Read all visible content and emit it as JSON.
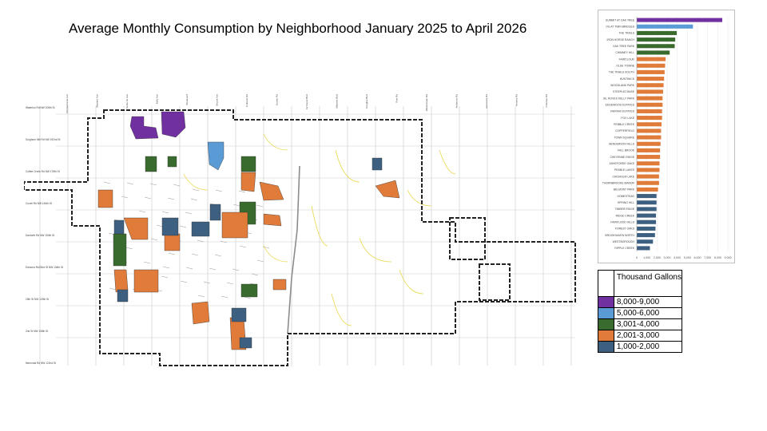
{
  "title": "Average Monthly Consumption by Neighborhood January 2025 to April 2026",
  "map": {
    "street_labels_top": [
      "Pennsylvania Ave",
      "Western Ave",
      "Santa Fe Ave",
      "Kelly Ave",
      "Boulevard",
      "Bryant Ave",
      "Coltrane Rd",
      "Sooner Rd",
      "Air Depot Blvd",
      "Midwest Blvd",
      "Douglas Blvd",
      "Post Rd",
      "Westminster Rd",
      "Anderson Rd",
      "Hiwassee Rd",
      "Henney Rd",
      "Choctaw Rd"
    ],
    "street_labels_left": [
      "Waterloo Rd NW 206th St",
      "Sorghum Mill Rd NW 192nd St",
      "Coffee Creek Rd NW 178th St",
      "Covell Rd NW 164th St",
      "Danforth Rd NW 150th St",
      "Edmond Rd/33rd St NW 134th St",
      "15th St NW 120th St",
      "2nd St NW 106th St",
      "Memorial Rd NW 122nd St"
    ]
  },
  "legend": {
    "header": "Thousand Gallons",
    "items": [
      {
        "label": "8,000-9,000",
        "color": "#7030a0"
      },
      {
        "label": "5,000-6,000",
        "color": "#5b9bd5"
      },
      {
        "label": "3,001-4,000",
        "color": "#3a6b2e"
      },
      {
        "label": "2,001-3,000",
        "color": "#e07b39"
      },
      {
        "label": "1,000-2,000",
        "color": "#3d5f80"
      }
    ]
  },
  "chart_data": {
    "type": "bar",
    "orientation": "horizontal",
    "title": "",
    "xlabel": "",
    "ylabel": "",
    "xlim": [
      0,
      9000
    ],
    "x_ticks": [
      "0",
      "1,000",
      "2,000",
      "3,000",
      "4,000",
      "5,000",
      "6,000",
      "7,000",
      "8,000",
      "9,000"
    ],
    "grid": true,
    "categories": [
      "SUMMIT AT OAK TREE",
      "OG AT TWIN BRIDGES",
      "THE TRAILS",
      "IRON HORSE RANCH",
      "OAK TREE PARK",
      "CHIMNEY HILL",
      "FAIRCLOUD",
      "OLDE TOWNE",
      "THE TRAILS SOUTH",
      "HUNTWICK",
      "WOODLAND PARK",
      "STEEPLECHASE",
      "GIL ROVES KELLY PARK",
      "EDGEWOOD ESTATES",
      "FAIRFAX ESTATES",
      "FOX LAKE",
      "PEBBLE CREEK",
      "COPPERFIELD",
      "TOWN SQUARE",
      "HENDERSON HILLS",
      "FALL BROOK",
      "CHEYENNE RIDGE",
      "ASHEFORDE OAKS",
      "PEBBLE LAKES",
      "CHISHOLM LAKE",
      "THORNBROOKE MANOR",
      "BELMONT PARK",
      "HOMESTEAD",
      "SPRING HILL",
      "TIMBER RIDGE",
      "RIDGE CREEK",
      "FAIRFLOOD HILLS",
      "FOREST OAKS",
      "BROOKHAVEN NORTH",
      "WESTBOROUGH",
      "RIPPLE CREEK"
    ],
    "values": [
      8450,
      5550,
      3950,
      3800,
      3750,
      3250,
      2850,
      2800,
      2750,
      2700,
      2650,
      2600,
      2550,
      2550,
      2500,
      2500,
      2450,
      2400,
      2400,
      2350,
      2300,
      2300,
      2250,
      2250,
      2200,
      2200,
      2100,
      1950,
      1950,
      1950,
      1900,
      1900,
      1850,
      1800,
      1600,
      1300
    ],
    "colors": [
      "#7030a0",
      "#5b9bd5",
      "#3a6b2e",
      "#3a6b2e",
      "#3a6b2e",
      "#3a6b2e",
      "#e07b39",
      "#e07b39",
      "#e07b39",
      "#e07b39",
      "#e07b39",
      "#e07b39",
      "#e07b39",
      "#e07b39",
      "#e07b39",
      "#e07b39",
      "#e07b39",
      "#e07b39",
      "#e07b39",
      "#e07b39",
      "#e07b39",
      "#e07b39",
      "#e07b39",
      "#e07b39",
      "#e07b39",
      "#e07b39",
      "#e07b39",
      "#3d5f80",
      "#3d5f80",
      "#3d5f80",
      "#3d5f80",
      "#3d5f80",
      "#3d5f80",
      "#3d5f80",
      "#3d5f80",
      "#3d5f80"
    ]
  }
}
